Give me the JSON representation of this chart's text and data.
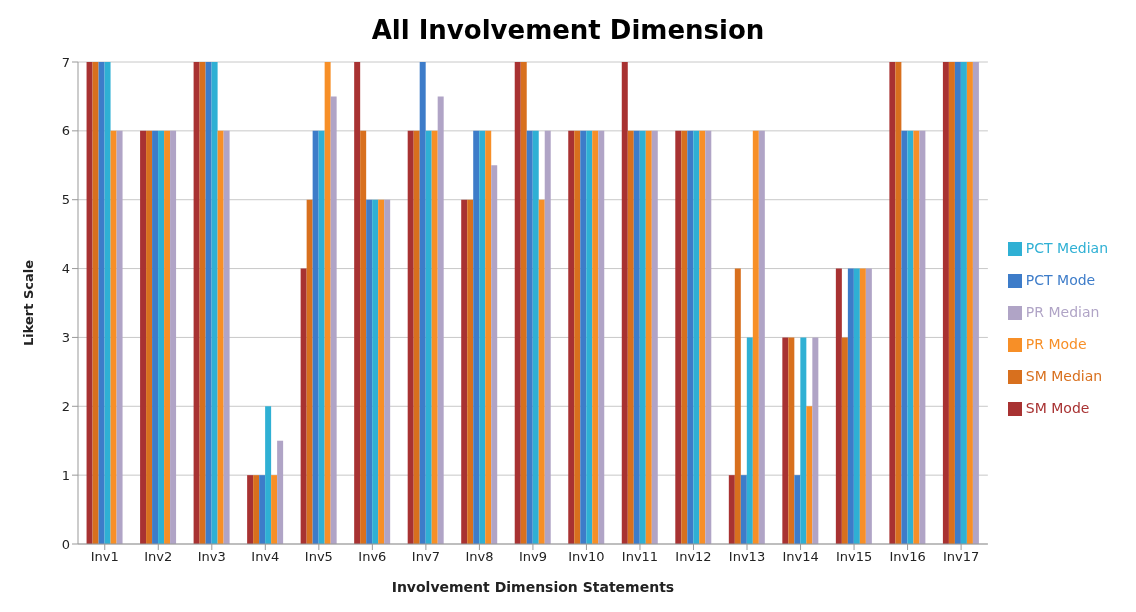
{
  "chart_data": {
    "type": "bar",
    "title": "All Involvement Dimension",
    "xlabel": "Involvement Dimension Statements",
    "ylabel": "Likert Scale",
    "categories": [
      "Inv1",
      "Inv2",
      "Inv3",
      "Inv4",
      "Inv5",
      "Inv6",
      "Inv7",
      "Inv8",
      "Inv9",
      "Inv10",
      "Inv11",
      "Inv12",
      "Inv13",
      "Inv14",
      "Inv15",
      "Inv16",
      "Inv17"
    ],
    "series": [
      {
        "name": "SM Mode",
        "color": "#a83232",
        "values": [
          7,
          6,
          7,
          1,
          4,
          7,
          6,
          5,
          7,
          6,
          7,
          6,
          1,
          3,
          4,
          7,
          7
        ]
      },
      {
        "name": "SM Median",
        "color": "#d8701e",
        "values": [
          7,
          6,
          7,
          1,
          5,
          6,
          6,
          5,
          7,
          6,
          6,
          6,
          4,
          3,
          3,
          7,
          7
        ]
      },
      {
        "name": "PCT Mode",
        "color": "#3d7cc9",
        "values": [
          7,
          6,
          7,
          1,
          6,
          5,
          7,
          6,
          6,
          6,
          6,
          6,
          1,
          1,
          4,
          6,
          7
        ]
      },
      {
        "name": "PCT Median",
        "color": "#2fb0d4",
        "values": [
          7,
          6,
          7,
          2,
          6,
          5,
          6,
          6,
          6,
          6,
          6,
          6,
          3,
          3,
          4,
          6,
          7
        ]
      },
      {
        "name": "PR Mode",
        "color": "#f78f27",
        "values": [
          6,
          6,
          6,
          1,
          7,
          5,
          6,
          6,
          5,
          6,
          6,
          6,
          6,
          2,
          4,
          6,
          7
        ]
      },
      {
        "name": "PR Median",
        "color": "#b0a4c6",
        "values": [
          6,
          6,
          6,
          1.5,
          6.5,
          5,
          6.5,
          5.5,
          6,
          6,
          6,
          6,
          6,
          3,
          4,
          6,
          7
        ]
      }
    ],
    "ylim": [
      0,
      7
    ],
    "yticks": [
      0,
      1,
      2,
      3,
      4,
      5,
      6,
      7
    ],
    "grid": "y",
    "legend": "right"
  }
}
